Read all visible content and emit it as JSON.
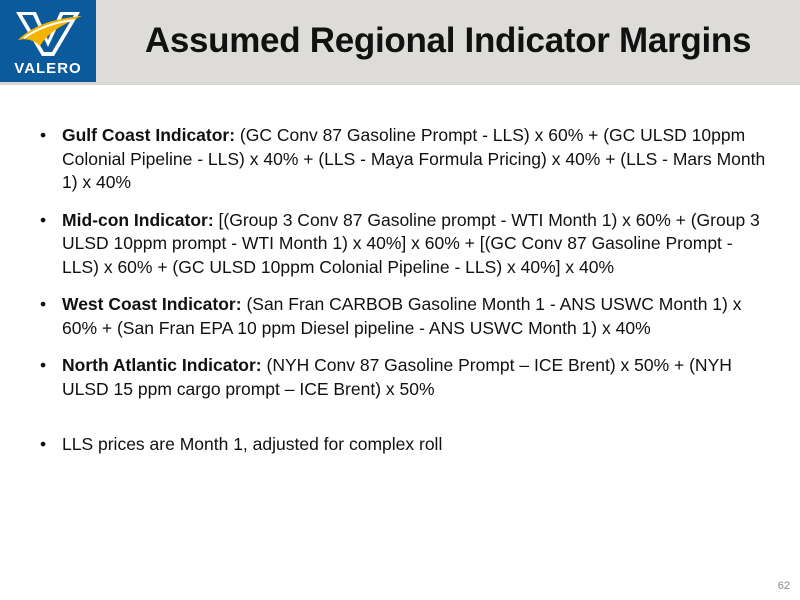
{
  "header": {
    "title": "Assumed Regional Indicator Margins",
    "logo_text": "VALERO",
    "brand_colors": {
      "logo_blue": "#0a5a9c",
      "logo_gold": "#f2b400",
      "header_gray": "#dddcd9"
    }
  },
  "bullets": [
    {
      "head": "Gulf Coast Indicator:",
      "text": " (GC Conv 87 Gasoline Prompt - LLS) x 60% + (GC ULSD 10ppm Colonial Pipeline - LLS) x 40% + (LLS - Maya Formula Pricing) x 40% + (LLS - Mars Month 1) x 40%"
    },
    {
      "head": "Mid-con Indicator:",
      "text": " [(Group 3 Conv 87 Gasoline prompt - WTI Month 1) x 60% + (Group 3 ULSD 10ppm prompt - WTI Month 1) x 40%] x 60% + [(GC Conv 87 Gasoline Prompt - LLS) x 60% + (GC ULSD 10ppm Colonial Pipeline - LLS) x 40%] x 40%"
    },
    {
      "head": "West Coast Indicator:",
      "text": " (San Fran CARBOB Gasoline Month 1 - ANS USWC Month 1) x 60% + (San Fran EPA  10 ppm Diesel pipeline - ANS USWC Month 1) x 40%"
    },
    {
      "head": "North Atlantic Indicator:",
      "text": " (NYH Conv 87 Gasoline Prompt – ICE Brent) x 50% + (NYH ULSD 15 ppm cargo prompt – ICE Brent) x 50%"
    }
  ],
  "note": "LLS prices are Month 1, adjusted for complex roll",
  "page_number": "62"
}
